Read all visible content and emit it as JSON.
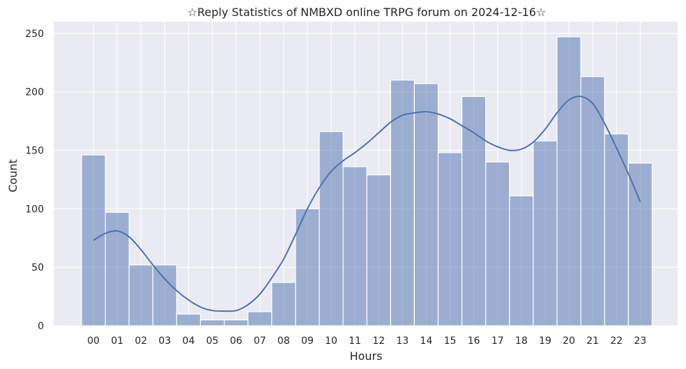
{
  "chart_data": {
    "type": "bar",
    "subtype": "histogram-with-kde",
    "title": "☆Reply Statistics of NMBXD online TRPG forum on 2024-12-16☆",
    "xlabel": "Hours",
    "ylabel": "Count",
    "categories": [
      "00",
      "01",
      "02",
      "03",
      "04",
      "05",
      "06",
      "07",
      "08",
      "09",
      "10",
      "11",
      "12",
      "13",
      "14",
      "15",
      "16",
      "17",
      "18",
      "19",
      "20",
      "21",
      "22",
      "23"
    ],
    "values": [
      146,
      97,
      52,
      52,
      10,
      5,
      5,
      12,
      37,
      100,
      166,
      136,
      129,
      210,
      207,
      148,
      196,
      140,
      111,
      158,
      247,
      213,
      164,
      139
    ],
    "ylim": [
      0,
      260
    ],
    "yticks": [
      0,
      50,
      100,
      150,
      200,
      250
    ],
    "kde": {
      "x": [
        0,
        0.5,
        1,
        1.5,
        2,
        2.5,
        3,
        3.5,
        4,
        4.5,
        5,
        5.5,
        6,
        6.5,
        7,
        7.5,
        8,
        8.5,
        9,
        9.5,
        10,
        10.5,
        11,
        11.5,
        12,
        12.5,
        13,
        13.5,
        14,
        14.5,
        15,
        15.5,
        16,
        16.5,
        17,
        17.5,
        18,
        18.5,
        19,
        19.5,
        20,
        20.5,
        21,
        21.5,
        22,
        22.5,
        23
      ],
      "y": [
        73,
        79,
        81,
        76,
        65,
        52,
        40,
        30,
        22,
        16,
        13,
        12.5,
        13,
        18,
        27,
        41,
        57,
        78,
        100,
        118,
        132,
        141,
        148,
        156,
        165,
        174,
        180,
        182,
        183,
        181,
        177,
        171,
        165,
        158,
        153,
        150,
        151,
        157,
        168,
        182,
        193,
        196,
        190,
        173,
        152,
        130,
        106
      ]
    },
    "grid": true,
    "legend": "none",
    "colors": {
      "bar": "#4c72b0",
      "line": "#4c72b0",
      "background": "#eaeaf2",
      "grid": "#ffffff"
    }
  }
}
